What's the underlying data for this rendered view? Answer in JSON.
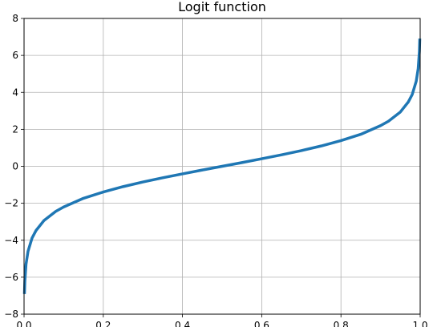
{
  "chart_data": {
    "type": "line",
    "title": "Logit function",
    "xlabel": "",
    "ylabel": "",
    "xlim": [
      0.0,
      1.0
    ],
    "ylim": [
      -8,
      8
    ],
    "grid": true,
    "x_ticks": [
      "0.0",
      "0.2",
      "0.4",
      "0.6",
      "0.8",
      "1.0"
    ],
    "y_ticks": [
      "−8",
      "−6",
      "−4",
      "−2",
      "0",
      "2",
      "4",
      "6",
      "8"
    ],
    "series": [
      {
        "color": "#1f77b4",
        "x": [
          0.001,
          0.002,
          0.005,
          0.01,
          0.02,
          0.03,
          0.05,
          0.08,
          0.1,
          0.15,
          0.2,
          0.25,
          0.3,
          0.35,
          0.4,
          0.45,
          0.5,
          0.55,
          0.6,
          0.65,
          0.7,
          0.75,
          0.8,
          0.85,
          0.9,
          0.92,
          0.95,
          0.97,
          0.98,
          0.99,
          0.995,
          0.998,
          0.999
        ],
        "y": [
          -6.91,
          -6.21,
          -5.29,
          -4.6,
          -3.89,
          -3.48,
          -2.94,
          -2.44,
          -2.2,
          -1.73,
          -1.39,
          -1.1,
          -0.85,
          -0.62,
          -0.41,
          -0.2,
          0.0,
          0.2,
          0.41,
          0.62,
          0.85,
          1.1,
          1.39,
          1.73,
          2.2,
          2.44,
          2.94,
          3.48,
          3.89,
          4.6,
          5.29,
          6.21,
          6.91
        ]
      }
    ]
  }
}
